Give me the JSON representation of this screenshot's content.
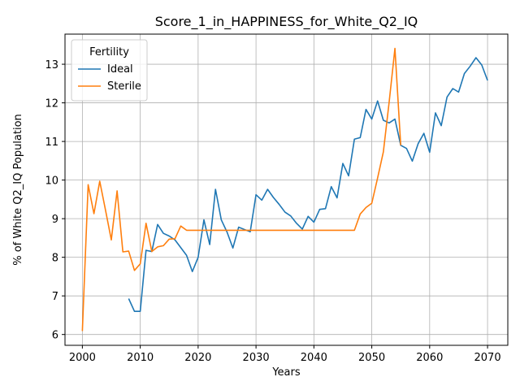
{
  "chart_data": {
    "type": "line",
    "title": "Score_1_in_HAPPINESS_for_White_Q2_IQ",
    "xlabel": "Years",
    "ylabel": "% of White Q2_IQ Population",
    "xlim": [
      1997,
      2073.5
    ],
    "ylim": [
      5.72,
      13.78
    ],
    "xticks": [
      2000,
      2010,
      2020,
      2030,
      2040,
      2050,
      2060,
      2070
    ],
    "yticks": [
      6,
      7,
      8,
      9,
      10,
      11,
      12,
      13
    ],
    "grid": true,
    "legend": {
      "title": "Fertility",
      "placement": "top-left"
    },
    "series": [
      {
        "name": "Ideal",
        "color": "#1f77b4",
        "x": [
          2008,
          2009,
          2010,
          2011,
          2012,
          2013,
          2014,
          2015,
          2016,
          2017,
          2018,
          2019,
          2020,
          2021,
          2022,
          2023,
          2024,
          2025,
          2026,
          2027,
          2028,
          2029,
          2030,
          2031,
          2032,
          2033,
          2034,
          2035,
          2036,
          2037,
          2038,
          2039,
          2040,
          2041,
          2042,
          2043,
          2044,
          2045,
          2046,
          2047,
          2048,
          2049,
          2050,
          2051,
          2052,
          2053,
          2054,
          2055,
          2056,
          2057,
          2058,
          2059,
          2060,
          2061,
          2062,
          2063,
          2064,
          2065,
          2066,
          2067,
          2068,
          2069,
          2070
        ],
        "y": [
          6.93,
          6.6,
          6.6,
          8.18,
          8.15,
          8.85,
          8.62,
          8.55,
          8.45,
          8.25,
          8.05,
          7.63,
          8.0,
          8.97,
          8.33,
          9.76,
          8.97,
          8.65,
          8.24,
          8.78,
          8.72,
          8.66,
          9.62,
          9.48,
          9.76,
          9.55,
          9.37,
          9.17,
          9.07,
          8.88,
          8.73,
          9.06,
          8.91,
          9.24,
          9.26,
          9.83,
          9.54,
          10.43,
          10.11,
          11.06,
          11.1,
          11.83,
          11.58,
          12.05,
          11.55,
          11.48,
          11.58,
          10.9,
          10.82,
          10.49,
          10.94,
          11.21,
          10.72,
          11.74,
          11.41,
          12.15,
          12.37,
          12.28,
          12.76,
          12.95,
          13.17,
          12.98,
          12.58
        ]
      },
      {
        "name": "Sterile",
        "color": "#ff7f0e",
        "x": [
          2000,
          2001,
          2002,
          2003,
          2004,
          2005,
          2006,
          2007,
          2008,
          2009,
          2010,
          2011,
          2012,
          2013,
          2014,
          2015,
          2016,
          2017,
          2018,
          2019,
          2020,
          2021,
          2022,
          2023,
          2024,
          2025,
          2026,
          2027,
          2028,
          2029,
          2030,
          2031,
          2032,
          2033,
          2034,
          2035,
          2036,
          2037,
          2038,
          2039,
          2040,
          2041,
          2042,
          2043,
          2044,
          2045,
          2046,
          2047,
          2048,
          2049,
          2050,
          2051,
          2052,
          2053,
          2054,
          2055
        ],
        "y": [
          6.09,
          9.88,
          9.13,
          9.97,
          9.22,
          8.45,
          9.72,
          8.14,
          8.16,
          7.66,
          7.83,
          8.88,
          8.15,
          8.27,
          8.3,
          8.47,
          8.48,
          8.81,
          8.7,
          8.7,
          8.7,
          8.7,
          8.7,
          8.7,
          8.7,
          8.7,
          8.7,
          8.7,
          8.7,
          8.7,
          8.7,
          8.7,
          8.7,
          8.7,
          8.7,
          8.7,
          8.7,
          8.7,
          8.7,
          8.7,
          8.7,
          8.7,
          8.7,
          8.7,
          8.7,
          8.7,
          8.7,
          8.7,
          9.12,
          9.29,
          9.4,
          10.05,
          10.73,
          12.02,
          13.41,
          10.9
        ]
      }
    ]
  }
}
